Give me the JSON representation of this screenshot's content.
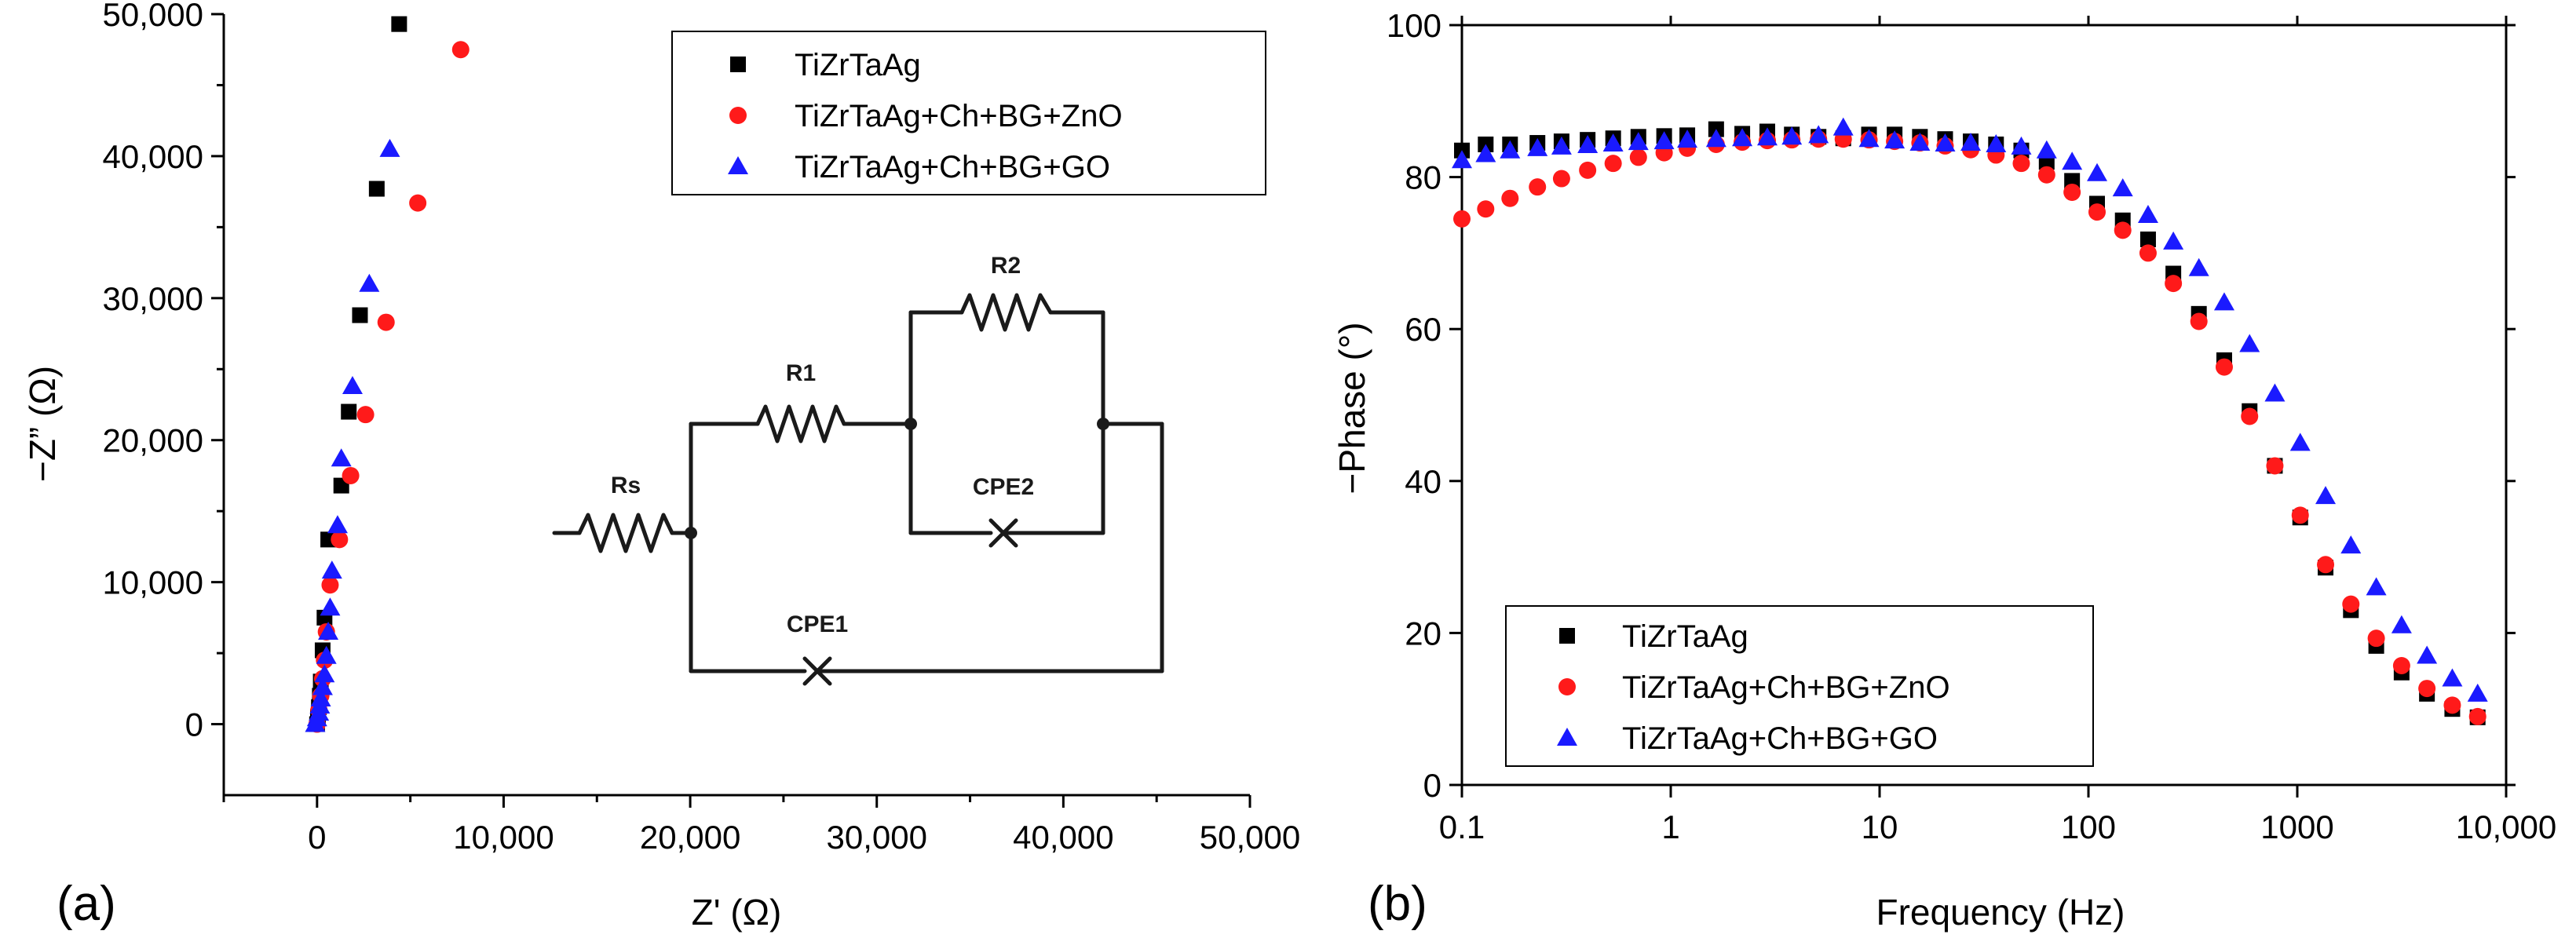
{
  "colors": {
    "black": "#000000",
    "red": "#ff1a1a",
    "blue": "#1a1aff",
    "axis": "#000000"
  },
  "chart_data": [
    {
      "type": "scatter",
      "panel_label": "(a)",
      "xlabel": "Z' (Ω)",
      "ylabel": "−Z” (Ω)",
      "xlim": [
        -5000,
        50000
      ],
      "ylim": [
        -5000,
        50000
      ],
      "xticks": [
        0,
        10000,
        20000,
        30000,
        40000,
        50000
      ],
      "xtick_labels": [
        "0",
        "10,000",
        "20,000",
        "30,000",
        "40,000",
        "50,000"
      ],
      "yticks": [
        0,
        10000,
        20000,
        30000,
        40000,
        50000
      ],
      "ytick_labels": [
        "0",
        "10,000",
        "20,000",
        "30,000",
        "40,000",
        "50,000"
      ],
      "legend_position": "top-right",
      "series": [
        {
          "name": "TiZrTaAg",
          "marker": "square",
          "color": "#000000",
          "x": [
            0,
            50,
            100,
            150,
            200,
            300,
            400,
            600,
            1300,
            1700,
            2300,
            3200,
            4400
          ],
          "y": [
            0,
            500,
            1200,
            2000,
            3000,
            5200,
            7500,
            13000,
            16800,
            22000,
            28800,
            37700,
            49300
          ]
        },
        {
          "name": "TiZrTaAg+Ch+BG+ZnO",
          "marker": "circle",
          "color": "#ff1a1a",
          "x": [
            0,
            100,
            200,
            300,
            400,
            500,
            700,
            1200,
            1800,
            2600,
            3700,
            5400,
            7700
          ],
          "y": [
            0,
            1000,
            2000,
            3200,
            4500,
            6500,
            9800,
            13000,
            17500,
            21800,
            28300,
            36700,
            47500
          ]
        },
        {
          "name": "TiZrTaAg+Ch+BG+GO",
          "marker": "triangle",
          "color": "#1a1aff",
          "x": [
            -100,
            0,
            100,
            150,
            200,
            300,
            400,
            500,
            600,
            700,
            800,
            1100,
            1300,
            1900,
            2800,
            3900
          ],
          "y": [
            0,
            400,
            800,
            1300,
            1800,
            2600,
            3500,
            4800,
            6500,
            8200,
            10800,
            14000,
            18700,
            23800,
            31000,
            40500
          ]
        }
      ],
      "inset_circuit": {
        "labels": {
          "rs": "Rs",
          "r1": "R1",
          "r2": "R2",
          "cpe1": "CPE1",
          "cpe2": "CPE2"
        }
      }
    },
    {
      "type": "scatter",
      "panel_label": "(b)",
      "xlabel": "Frequency (Hz)",
      "ylabel": "−Phase (°)",
      "xscale": "log",
      "xlim": [
        0.1,
        10000
      ],
      "ylim": [
        0,
        100
      ],
      "xticks": [
        0.1,
        1,
        10,
        100,
        1000,
        10000
      ],
      "xtick_labels": [
        "0.1",
        "1",
        "10",
        "100",
        "1000",
        "10,000"
      ],
      "yticks": [
        0,
        20,
        40,
        60,
        80,
        100
      ],
      "ytick_labels": [
        "0",
        "20",
        "40",
        "60",
        "80",
        "100"
      ],
      "legend_position": "bottom-left",
      "series": [
        {
          "name": "TiZrTaAg",
          "marker": "square",
          "color": "#000000",
          "x": [
            0.1,
            0.13,
            0.17,
            0.23,
            0.3,
            0.4,
            0.53,
            0.7,
            0.93,
            1.2,
            1.65,
            2.2,
            2.9,
            3.8,
            5.1,
            6.7,
            8.9,
            11.8,
            15.6,
            20.6,
            27.3,
            36.1,
            47.7,
            63.1,
            83.5,
            110,
            146,
            193,
            255,
            338,
            447,
            591,
            781,
            1033,
            1366,
            1806,
            2389,
            3159,
            4177,
            5524,
            7305
          ],
          "y": [
            83.5,
            84.3,
            84.3,
            84.5,
            84.7,
            84.9,
            85.1,
            85.3,
            85.4,
            85.5,
            86.3,
            85.7,
            86.0,
            85.6,
            85.3,
            85.1,
            85.6,
            85.6,
            85.3,
            85.0,
            84.7,
            84.3,
            83.5,
            82.0,
            79.5,
            76.5,
            74.3,
            71.8,
            67.3,
            62.0,
            55.9,
            49.2,
            42.0,
            35.2,
            28.6,
            23.0,
            18.3,
            14.8,
            12.0,
            10.0,
            8.9
          ]
        },
        {
          "name": "TiZrTaAg+Ch+BG+ZnO",
          "marker": "circle",
          "color": "#ff1a1a",
          "x": [
            0.1,
            0.13,
            0.17,
            0.23,
            0.3,
            0.4,
            0.53,
            0.7,
            0.93,
            1.2,
            1.65,
            2.2,
            2.9,
            3.8,
            5.1,
            6.7,
            8.9,
            11.8,
            15.6,
            20.6,
            27.3,
            36.1,
            47.7,
            63.1,
            83.5,
            110,
            146,
            193,
            255,
            338,
            447,
            591,
            781,
            1033,
            1366,
            1806,
            2389,
            3159,
            4177,
            5524,
            7305
          ],
          "y": [
            74.5,
            75.8,
            77.2,
            78.7,
            79.8,
            80.9,
            81.8,
            82.6,
            83.2,
            83.8,
            84.3,
            84.6,
            84.8,
            84.9,
            85.0,
            85.0,
            84.9,
            84.7,
            84.5,
            84.1,
            83.6,
            82.9,
            81.8,
            80.3,
            78.0,
            75.4,
            73.0,
            70.0,
            66.0,
            61.0,
            55.0,
            48.5,
            42.0,
            35.5,
            29.0,
            23.8,
            19.3,
            15.7,
            12.7,
            10.5,
            9.0
          ]
        },
        {
          "name": "TiZrTaAg+Ch+BG+GO",
          "marker": "triangle",
          "color": "#1a1aff",
          "x": [
            0.1,
            0.13,
            0.17,
            0.23,
            0.3,
            0.4,
            0.53,
            0.7,
            0.93,
            1.2,
            1.65,
            2.2,
            2.9,
            3.8,
            5.1,
            6.7,
            8.9,
            11.8,
            15.6,
            20.6,
            27.3,
            36.1,
            47.7,
            63.1,
            83.5,
            110,
            146,
            193,
            255,
            338,
            447,
            591,
            781,
            1033,
            1366,
            1806,
            2389,
            3159,
            4177,
            5524,
            7305
          ],
          "y": [
            82.2,
            83.0,
            83.5,
            83.8,
            84.0,
            84.2,
            84.4,
            84.6,
            84.7,
            84.9,
            85.0,
            85.1,
            85.2,
            85.3,
            85.5,
            86.5,
            85.0,
            84.8,
            84.5,
            84.4,
            84.5,
            84.3,
            84.0,
            83.5,
            82.0,
            80.5,
            78.5,
            75.0,
            71.5,
            68.0,
            63.5,
            58.0,
            51.5,
            45.0,
            38.0,
            31.5,
            26.0,
            21.0,
            17.0,
            14.0,
            12.0
          ]
        }
      ]
    }
  ]
}
